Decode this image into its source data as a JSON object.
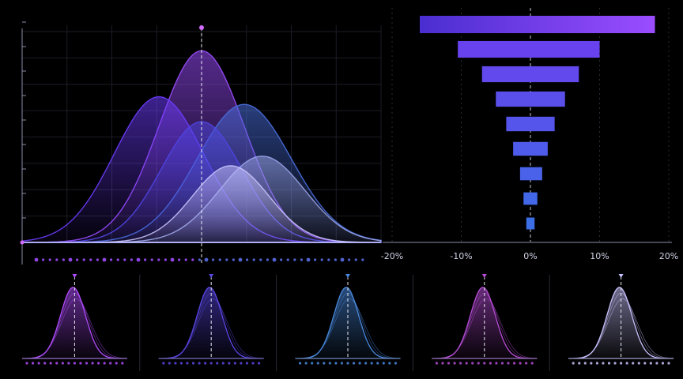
{
  "colors": {
    "background": "#000000",
    "grid": "#1c1c26",
    "axis": "#8a8fa8",
    "purple": "#9b4dff",
    "violet": "#6d3cff",
    "indigo": "#4f46e5",
    "blue": "#4a6fe0",
    "lavender": "#c9c4ff"
  },
  "chart_data": [
    {
      "type": "area",
      "title": "",
      "xlabel": "",
      "ylabel": "",
      "grid": true,
      "x_range": [
        -4,
        4
      ],
      "y_range": [
        0,
        1.1
      ],
      "reference_line_x": 0,
      "series": [
        {
          "mu": 0.0,
          "sigma": 0.95,
          "peak": 1.0,
          "color": "#9b4dff"
        },
        {
          "mu": -0.95,
          "sigma": 1.0,
          "peak": 0.76,
          "color": "#6d3cff"
        },
        {
          "mu": 0.95,
          "sigma": 1.05,
          "peak": 0.72,
          "color": "#4a6fe0"
        },
        {
          "mu": 0.0,
          "sigma": 0.9,
          "peak": 0.63,
          "color": "#4f46e5"
        },
        {
          "mu": 1.35,
          "sigma": 0.95,
          "peak": 0.45,
          "color": "#9aa4e8"
        },
        {
          "mu": 0.65,
          "sigma": 0.85,
          "peak": 0.4,
          "color": "#c9c4ff"
        }
      ]
    },
    {
      "type": "bar",
      "orientation": "horizontal",
      "title": "",
      "x_ticks": [
        "-20%",
        "-10%",
        "0%",
        "10%",
        "20%"
      ],
      "x_range": [
        -20,
        20
      ],
      "bars": [
        {
          "start": -16.0,
          "end": 18.0
        },
        {
          "start": -10.5,
          "end": 10.0
        },
        {
          "start": -7.0,
          "end": 7.0
        },
        {
          "start": -5.0,
          "end": 5.0
        },
        {
          "start": -3.5,
          "end": 3.5
        },
        {
          "start": -2.5,
          "end": 2.5
        },
        {
          "start": -1.5,
          "end": 1.7
        },
        {
          "start": -1.0,
          "end": 1.0
        },
        {
          "start": -0.6,
          "end": 0.6
        }
      ]
    },
    {
      "type": "area",
      "panel": 1,
      "color": "#b14dff",
      "reference_line_x": 0
    },
    {
      "type": "area",
      "panel": 2,
      "color": "#5b48e8",
      "reference_line_x": 0
    },
    {
      "type": "area",
      "panel": 3,
      "color": "#4a8ae0",
      "reference_line_x": 0
    },
    {
      "type": "area",
      "panel": 4,
      "color": "#b84dd8",
      "reference_line_x": 0
    },
    {
      "type": "area",
      "panel": 5,
      "color": "#c9c4ff",
      "reference_line_x": 0
    }
  ]
}
